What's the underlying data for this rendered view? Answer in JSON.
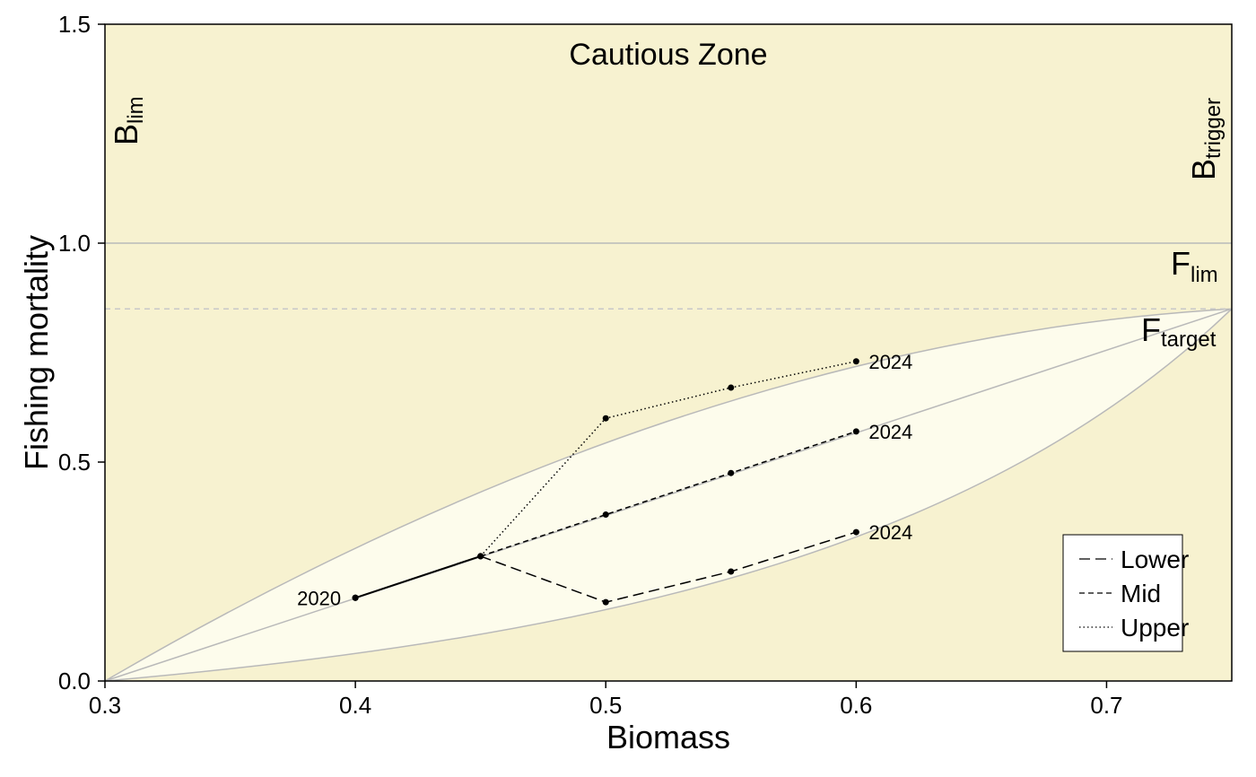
{
  "chart_data": {
    "type": "line",
    "xlabel": "Biomass",
    "ylabel": "Fishing mortality",
    "xlim": [
      0.3,
      0.75
    ],
    "ylim": [
      0.0,
      1.5
    ],
    "x_ticks": [
      "0.3",
      "0.4",
      "0.5",
      "0.6",
      "0.7"
    ],
    "y_ticks": [
      "0.0",
      "0.5",
      "1.0",
      "1.5"
    ],
    "zone_label": "Cautious Zone",
    "reference_labels": {
      "blim": {
        "main": "B",
        "sub": "lim"
      },
      "btrigger": {
        "main": "B",
        "sub": "trigger"
      },
      "flim": {
        "main": "F",
        "sub": "lim"
      },
      "ftarget": {
        "main": "F",
        "sub": "target"
      }
    },
    "reference_lines": {
      "flim": 1.0,
      "ftarget": 0.85
    },
    "envelope": {
      "origin": [
        0.3,
        0.0
      ],
      "apex": [
        0.75,
        0.85
      ]
    },
    "series": [
      {
        "name": "Lower",
        "dash": "long-dash",
        "x": [
          0.4,
          0.45,
          0.5,
          0.55,
          0.6
        ],
        "y": [
          0.19,
          0.285,
          0.18,
          0.25,
          0.34
        ],
        "end_label": "2024"
      },
      {
        "name": "Mid",
        "dash": "dash",
        "x": [
          0.4,
          0.45,
          0.5,
          0.55,
          0.6
        ],
        "y": [
          0.19,
          0.285,
          0.38,
          0.475,
          0.57
        ],
        "end_label": "2024"
      },
      {
        "name": "Upper",
        "dash": "dot",
        "x": [
          0.4,
          0.45,
          0.5,
          0.55,
          0.6
        ],
        "y": [
          0.19,
          0.285,
          0.6,
          0.67,
          0.73
        ],
        "end_label": "2024"
      }
    ],
    "start_label": "2020",
    "colors": {
      "background": "#f7f2d0",
      "envelope": "#fdfcec",
      "reference_line": "#b9b9b9",
      "series": "#000000"
    },
    "legend_position": "bottom-right"
  }
}
